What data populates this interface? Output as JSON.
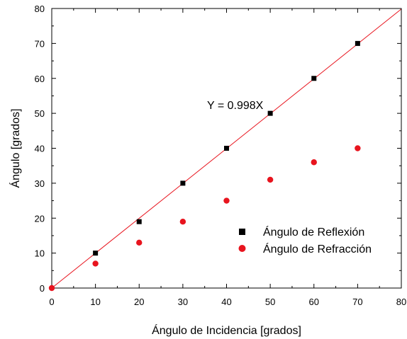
{
  "chart_data": {
    "type": "scatter",
    "title": "",
    "xlabel": "Ángulo de Incidencia [grados]",
    "ylabel": "Ángulo [grados]",
    "xlim": [
      0,
      80
    ],
    "ylim": [
      0,
      80
    ],
    "xticks": [
      "0",
      "10",
      "20",
      "30",
      "40",
      "50",
      "60",
      "70",
      "80"
    ],
    "yticks": [
      "0",
      "10",
      "20",
      "30",
      "40",
      "50",
      "60",
      "70",
      "80"
    ],
    "grid": false,
    "legend_position": "bottom-right",
    "series": [
      {
        "name": "Ángulo de Reflexión",
        "marker": "square",
        "color": "#000000",
        "x": [
          10,
          20,
          30,
          40,
          50,
          60,
          70
        ],
        "y": [
          10,
          19,
          30,
          40,
          50,
          60,
          70
        ]
      },
      {
        "name": "Ángulo de Refracción",
        "marker": "circle",
        "color": "#e8141e",
        "x": [
          0,
          10,
          20,
          30,
          40,
          50,
          60,
          70
        ],
        "y": [
          0,
          7,
          13,
          19,
          25,
          31,
          36,
          40
        ]
      }
    ],
    "fit_line": {
      "slope": 0.998,
      "color": "#e8141e",
      "x_range": [
        0,
        80
      ]
    },
    "annotation": {
      "text": "Y = 0.998X"
    }
  }
}
